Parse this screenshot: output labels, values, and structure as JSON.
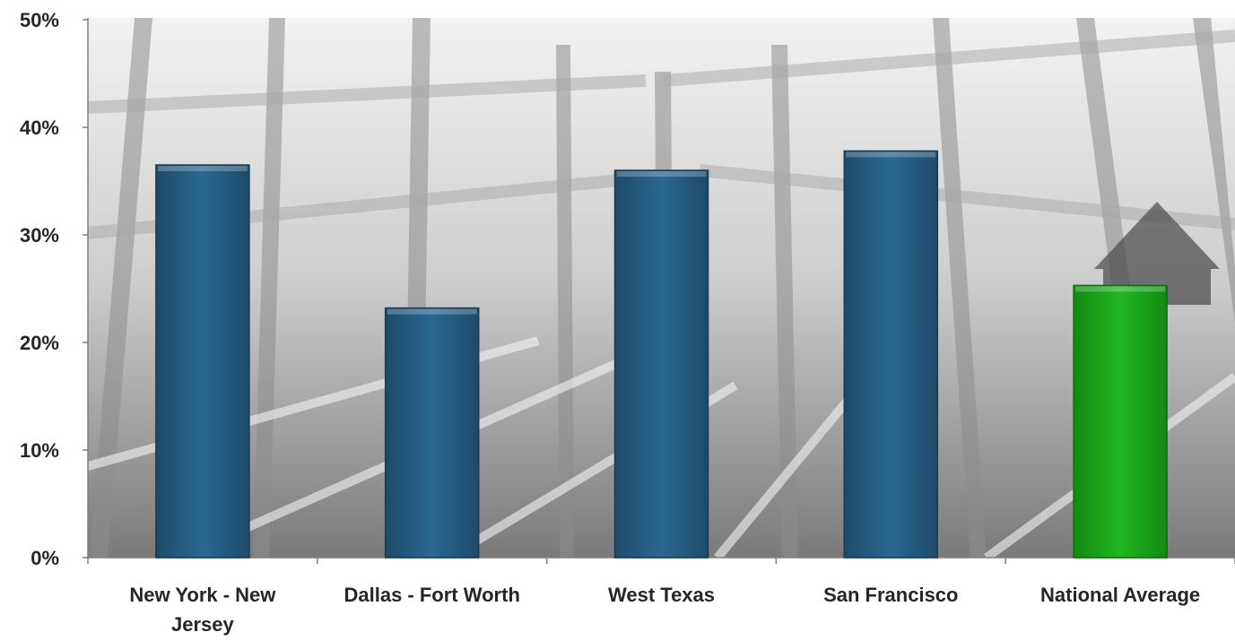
{
  "chart_data": {
    "type": "bar",
    "categories": [
      "New York - New Jersey",
      "Dallas - Fort Worth",
      "West Texas",
      "San Francisco",
      "National Average"
    ],
    "category_lines": [
      [
        "New York - New",
        "Jersey"
      ],
      [
        "Dallas - Fort Worth"
      ],
      [
        "West Texas"
      ],
      [
        "San Francisco"
      ],
      [
        "National Average"
      ]
    ],
    "values": [
      36.5,
      23.2,
      36.0,
      37.8,
      25.3
    ],
    "bar_colors": [
      "#255e86",
      "#255e86",
      "#255e86",
      "#255e86",
      "#1aa31a"
    ],
    "yticks": [
      "0%",
      "10%",
      "20%",
      "30%",
      "40%",
      "50%"
    ],
    "ylim": [
      0,
      50
    ],
    "title": "",
    "xlabel": "",
    "ylabel": "",
    "grid": false,
    "legend": "none",
    "background": "grayscale photo of a house under construction (wood framing)"
  }
}
